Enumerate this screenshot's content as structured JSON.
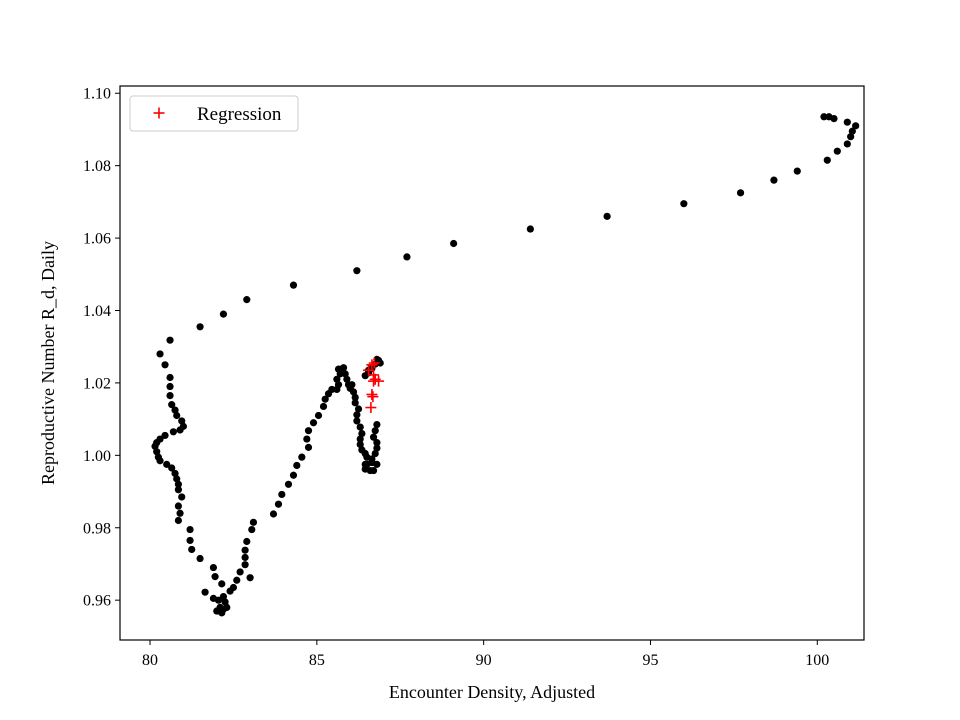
{
  "chart_data": {
    "type": "scatter",
    "xlabel": "Encounter Density, Adjusted",
    "ylabel": "Reproductive Number R_d, Daily",
    "xlim": [
      79.1,
      101.4
    ],
    "ylim": [
      0.949,
      1.102
    ],
    "xticks": [
      80,
      85,
      90,
      95,
      100
    ],
    "yticks": [
      0.96,
      0.98,
      1.0,
      1.02,
      1.04,
      1.06,
      1.08,
      1.1
    ],
    "ytick_labels": [
      "0.96",
      "0.98",
      "1.00",
      "1.02",
      "1.04",
      "1.06",
      "1.08",
      "1.10"
    ],
    "grid": false,
    "legend": {
      "position": "top-left",
      "entries": [
        "Regression"
      ]
    },
    "colors": {
      "observed": "#000000",
      "regression": "#ff0000"
    },
    "series": [
      {
        "marker": "dot",
        "color": "#000000",
        "points": [
          [
            100.2,
            1.0935
          ],
          [
            100.35,
            1.0935
          ],
          [
            100.5,
            1.093
          ],
          [
            100.9,
            1.092
          ],
          [
            101.15,
            1.091
          ],
          [
            101.05,
            1.0895
          ],
          [
            101.0,
            1.088
          ],
          [
            100.9,
            1.086
          ],
          [
            100.6,
            1.084
          ],
          [
            100.3,
            1.0815
          ],
          [
            99.4,
            1.0785
          ],
          [
            98.7,
            1.076
          ],
          [
            97.7,
            1.0725
          ],
          [
            96.0,
            1.0695
          ],
          [
            93.7,
            1.066
          ],
          [
            91.4,
            1.0625
          ],
          [
            89.1,
            1.0585
          ],
          [
            87.7,
            1.0548
          ],
          [
            86.2,
            1.051
          ],
          [
            84.3,
            1.047
          ],
          [
            82.9,
            1.043
          ],
          [
            82.2,
            1.039
          ],
          [
            81.5,
            1.0355
          ],
          [
            80.6,
            1.0318
          ],
          [
            80.3,
            1.028
          ],
          [
            80.45,
            1.025
          ],
          [
            80.6,
            1.0215
          ],
          [
            80.6,
            1.019
          ],
          [
            80.6,
            1.0165
          ],
          [
            80.65,
            1.014
          ],
          [
            80.75,
            1.0125
          ],
          [
            80.8,
            1.011
          ],
          [
            80.95,
            1.0095
          ],
          [
            81.0,
            1.008
          ],
          [
            80.9,
            1.007
          ],
          [
            80.7,
            1.0065
          ],
          [
            80.45,
            1.0055
          ],
          [
            80.3,
            1.0045
          ],
          [
            80.2,
            1.0035
          ],
          [
            80.15,
            1.0025
          ],
          [
            80.2,
            1.001
          ],
          [
            80.25,
            0.9995
          ],
          [
            80.3,
            0.9985
          ],
          [
            80.5,
            0.9975
          ],
          [
            80.65,
            0.9965
          ],
          [
            80.75,
            0.995
          ],
          [
            80.8,
            0.9935
          ],
          [
            80.85,
            0.992
          ],
          [
            80.85,
            0.9905
          ],
          [
            80.95,
            0.9885
          ],
          [
            80.85,
            0.986
          ],
          [
            80.9,
            0.984
          ],
          [
            80.85,
            0.982
          ],
          [
            81.2,
            0.9795
          ],
          [
            81.2,
            0.9765
          ],
          [
            81.25,
            0.974
          ],
          [
            81.5,
            0.9715
          ],
          [
            81.9,
            0.969
          ],
          [
            81.95,
            0.9665
          ],
          [
            82.15,
            0.9645
          ],
          [
            81.65,
            0.9622
          ],
          [
            81.9,
            0.9605
          ],
          [
            82.05,
            0.96
          ],
          [
            82.2,
            0.961
          ],
          [
            82.25,
            0.9595
          ],
          [
            82.1,
            0.958
          ],
          [
            82.2,
            0.9575
          ],
          [
            82.3,
            0.958
          ],
          [
            82.0,
            0.957
          ],
          [
            82.15,
            0.9565
          ],
          [
            82.4,
            0.9625
          ],
          [
            82.5,
            0.9635
          ],
          [
            82.6,
            0.9655
          ],
          [
            82.7,
            0.9678
          ],
          [
            82.85,
            0.9698
          ],
          [
            82.85,
            0.9718
          ],
          [
            82.85,
            0.9738
          ],
          [
            82.9,
            0.9762
          ],
          [
            83.05,
            0.9795
          ],
          [
            83.1,
            0.9815
          ],
          [
            83.0,
            0.9662
          ],
          [
            83.7,
            0.9838
          ],
          [
            83.85,
            0.9865
          ],
          [
            83.95,
            0.9892
          ],
          [
            84.15,
            0.992
          ],
          [
            84.3,
            0.9945
          ],
          [
            84.4,
            0.9972
          ],
          [
            84.55,
            0.9995
          ],
          [
            84.75,
            1.0022
          ],
          [
            84.7,
            1.0045
          ],
          [
            84.75,
            1.0068
          ],
          [
            84.9,
            1.009
          ],
          [
            85.05,
            1.011
          ],
          [
            85.2,
            1.0135
          ],
          [
            85.25,
            1.0155
          ],
          [
            85.35,
            1.017
          ],
          [
            85.45,
            1.0182
          ],
          [
            85.6,
            1.0182
          ],
          [
            85.65,
            1.0195
          ],
          [
            85.6,
            1.021
          ],
          [
            85.7,
            1.0225
          ],
          [
            85.65,
            1.0238
          ],
          [
            85.8,
            1.0242
          ],
          [
            85.85,
            1.0225
          ],
          [
            85.9,
            1.021
          ],
          [
            85.95,
            1.0195
          ],
          [
            86.0,
            1.0185
          ],
          [
            86.05,
            1.0195
          ],
          [
            86.1,
            1.0175
          ],
          [
            86.15,
            1.016
          ],
          [
            86.15,
            1.0145
          ],
          [
            86.25,
            1.0128
          ],
          [
            86.2,
            1.0112
          ],
          [
            86.2,
            1.0095
          ],
          [
            86.3,
            1.0078
          ],
          [
            86.35,
            1.006
          ],
          [
            86.3,
            1.0045
          ],
          [
            86.3,
            1.003
          ],
          [
            86.35,
            1.0015
          ],
          [
            86.45,
            1.0005
          ],
          [
            86.5,
            0.9995
          ],
          [
            86.65,
            0.999
          ],
          [
            86.65,
            0.998
          ],
          [
            86.8,
            0.9975
          ],
          [
            86.75,
            1.0005
          ],
          [
            86.8,
            1.002
          ],
          [
            86.8,
            1.0035
          ],
          [
            86.7,
            1.005
          ],
          [
            86.75,
            1.0068
          ],
          [
            86.8,
            1.0085
          ],
          [
            86.45,
            0.9975
          ],
          [
            86.45,
            0.9962
          ],
          [
            86.6,
            0.9958
          ],
          [
            86.7,
            0.9958
          ],
          [
            86.5,
            0.9975
          ],
          [
            86.55,
            1.0235
          ],
          [
            86.45,
            1.022
          ],
          [
            86.55,
            1.0228
          ],
          [
            86.65,
            1.024
          ],
          [
            86.75,
            1.0252
          ],
          [
            86.8,
            1.0265
          ],
          [
            86.85,
            1.0262
          ],
          [
            86.9,
            1.0255
          ]
        ]
      },
      {
        "name": "Regression",
        "marker": "plus",
        "color": "#ff0000",
        "points": [
          [
            86.55,
            1.0235
          ],
          [
            86.65,
            1.025
          ],
          [
            86.7,
            1.0222
          ],
          [
            86.7,
            1.0205
          ],
          [
            86.75,
            1.021
          ],
          [
            86.85,
            1.0205
          ],
          [
            86.65,
            1.0168
          ],
          [
            86.68,
            1.0162
          ],
          [
            86.62,
            1.0132
          ],
          [
            86.72,
            1.0255
          ]
        ]
      }
    ]
  }
}
